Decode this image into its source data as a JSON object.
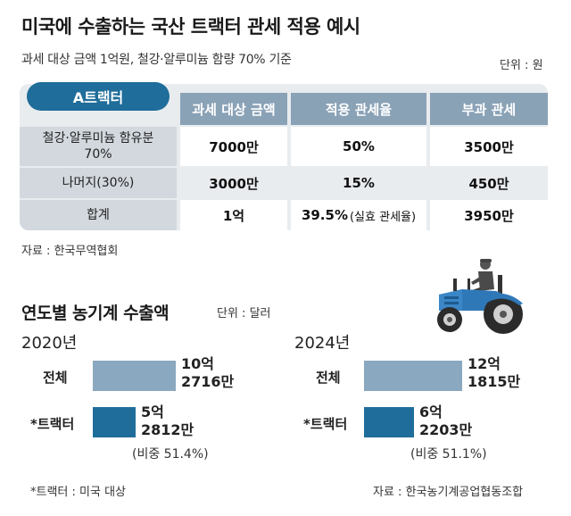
{
  "header": {
    "title": "미국에 수출하는 국산 트랙터 관세 적용 예시",
    "subtitle": "과세 대상 금액 1억원, 철강·알루미늄 함량 70% 기준",
    "unit": "단위 : 원"
  },
  "table": {
    "badge": "A트랙터",
    "columns": [
      "과세 대상 금액",
      "적용 관세율",
      "부과 관세"
    ],
    "rows": [
      {
        "label_line1": "철강·알루미늄 함유분",
        "label_line2": "70%",
        "amount": "7000만",
        "rate": "50%",
        "rate_note": "",
        "tariff": "3500만"
      },
      {
        "label_line1": "나머지(30%)",
        "label_line2": "",
        "amount": "3000만",
        "rate": "15%",
        "rate_note": "",
        "tariff": "450만"
      },
      {
        "label_line1": "합계",
        "label_line2": "",
        "amount": "1억",
        "rate": "39.5%",
        "rate_note": "(실효 관세율)",
        "tariff": "3950만"
      }
    ],
    "source": "자료 : 한국무역협회"
  },
  "chart_section": {
    "title": "연도별 농기계 수출액",
    "unit": "단위 : 달러",
    "footnote": "*트랙터 : 미국 대상",
    "source": "자료 : 한국농기계공업협동조합"
  },
  "chart_data": [
    {
      "type": "bar",
      "title": "2020년",
      "categories": [
        "전체",
        "*트랙터"
      ],
      "values": [
        1027160000,
        528120000
      ],
      "value_labels": [
        [
          "10억",
          "2716만"
        ],
        [
          "5억",
          "2812만"
        ]
      ],
      "share_label": "(비중 51.4%)",
      "colors": [
        "#8aa8bf",
        "#1f6d9a"
      ]
    },
    {
      "type": "bar",
      "title": "2024년",
      "categories": [
        "전체",
        "*트랙터"
      ],
      "values": [
        1218150000,
        622030000
      ],
      "value_labels": [
        [
          "12억",
          "1815만"
        ],
        [
          "6억",
          "2203만"
        ]
      ],
      "share_label": "(비중 51.1%)",
      "colors": [
        "#8aa8bf",
        "#1f6d9a"
      ]
    }
  ],
  "colors": {
    "accent": "#1f6d9a",
    "header_cell": "#8aa2b6",
    "tractor_blue": "#2f78b8"
  }
}
